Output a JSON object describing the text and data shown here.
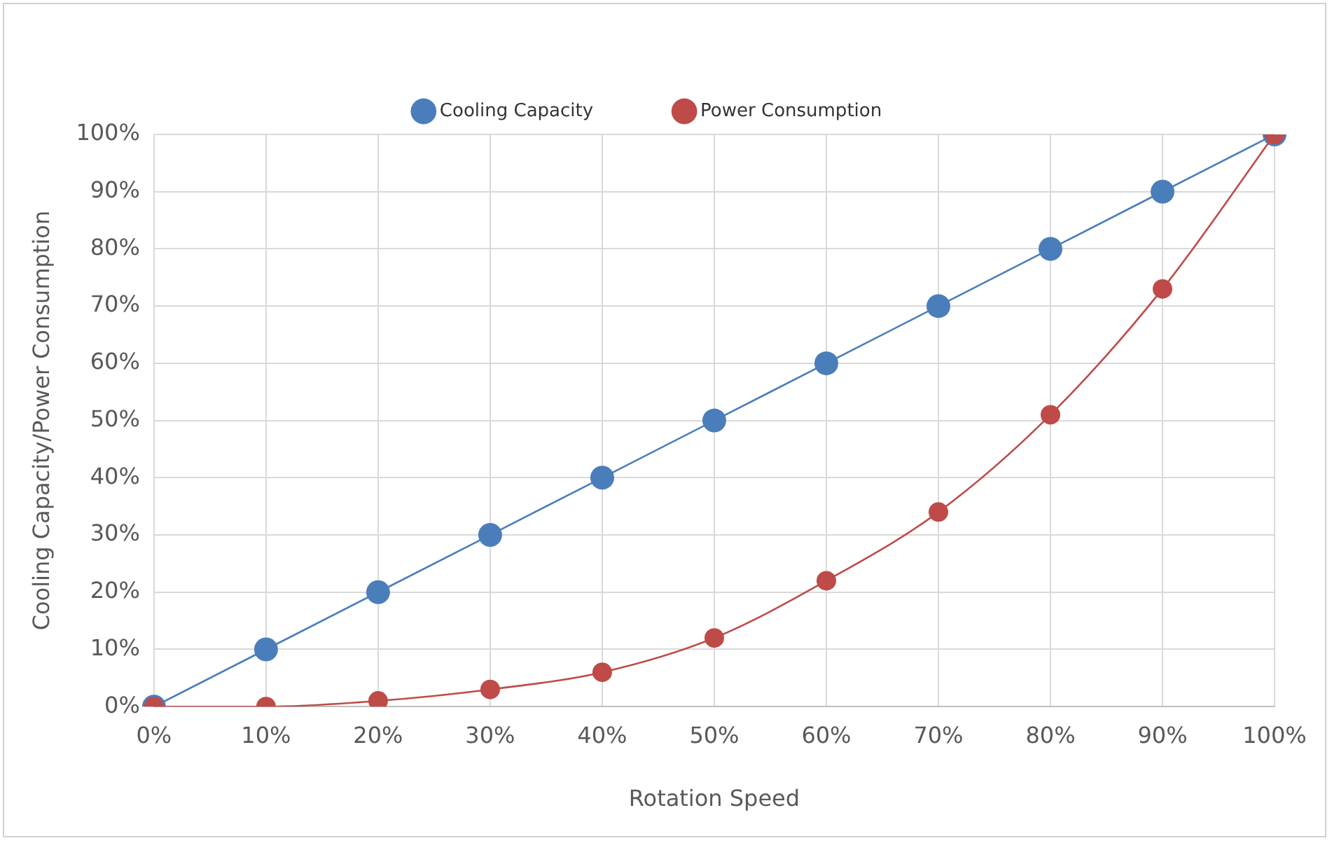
{
  "chart_data": {
    "type": "line",
    "xlabel": "Rotation Speed",
    "ylabel": "Cooling Capacity/Power Consumption",
    "categories": [
      "0%",
      "10%",
      "20%",
      "30%",
      "40%",
      "50%",
      "60%",
      "70%",
      "80%",
      "90%",
      "100%"
    ],
    "series": [
      {
        "name": "Cooling Capacity",
        "color": "#4a7ebb",
        "values": [
          0,
          10,
          20,
          30,
          40,
          50,
          60,
          70,
          80,
          90,
          100
        ]
      },
      {
        "name": "Power Consumption",
        "color": "#be4b48",
        "values": [
          0,
          0,
          1,
          3,
          6,
          12,
          22,
          34,
          51,
          73,
          100
        ]
      }
    ],
    "ylim": [
      0,
      100
    ],
    "yticks": [
      {
        "value": 0,
        "label": "0%"
      },
      {
        "value": 10,
        "label": "10%"
      },
      {
        "value": 20,
        "label": "20%"
      },
      {
        "value": 30,
        "label": "30%"
      },
      {
        "value": 40,
        "label": "40%"
      },
      {
        "value": 50,
        "label": "50%"
      },
      {
        "value": 60,
        "label": "60%"
      },
      {
        "value": 70,
        "label": "70%"
      },
      {
        "value": 80,
        "label": "80%"
      },
      {
        "value": 90,
        "label": "90%"
      },
      {
        "value": 100,
        "label": "100%"
      }
    ],
    "grid": true,
    "legend": "top",
    "marker": "circle",
    "line_style": "solid"
  }
}
